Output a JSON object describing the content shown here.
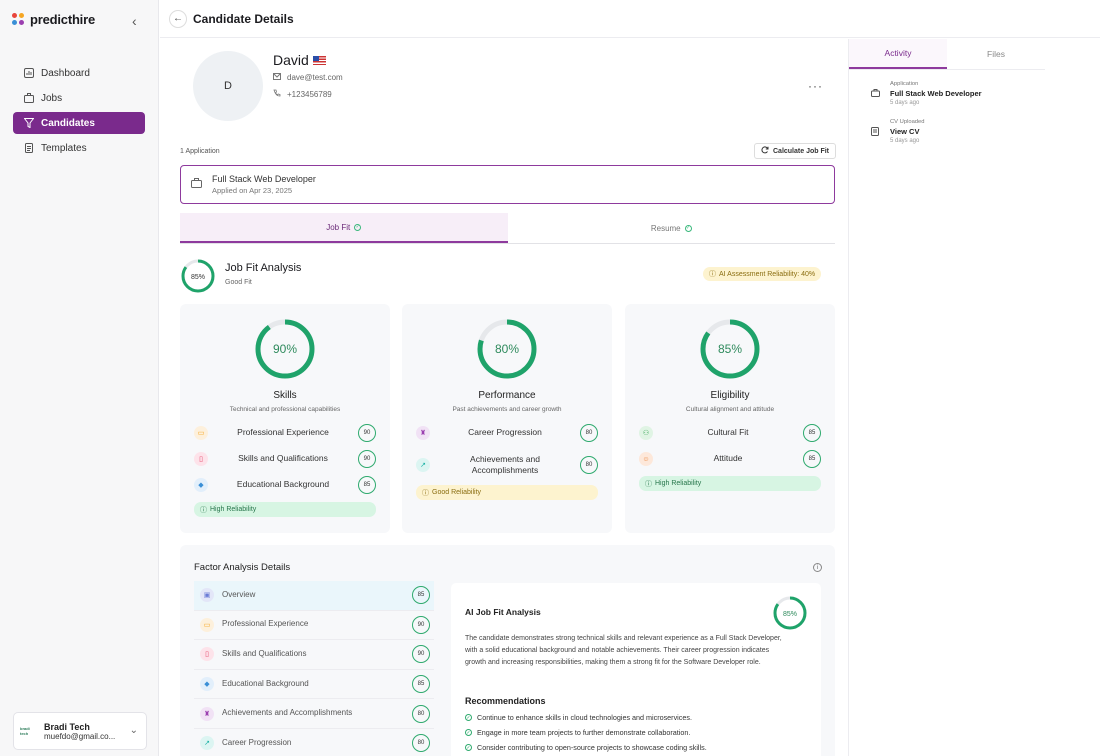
{
  "brand": {
    "name": "predicthire"
  },
  "sidebar": {
    "items": [
      {
        "label": "Dashboard",
        "icon": "dashboard-icon",
        "active": false
      },
      {
        "label": "Jobs",
        "icon": "briefcase-icon",
        "active": false
      },
      {
        "label": "Candidates",
        "icon": "filter-icon",
        "active": true
      },
      {
        "label": "Templates",
        "icon": "document-icon",
        "active": false
      }
    ],
    "user": {
      "company": "Bradi Tech",
      "email": "muefdo@gmail.co...",
      "logo_text": "bradi tech"
    }
  },
  "header": {
    "title": "Candidate Details"
  },
  "candidate": {
    "initial": "D",
    "name": "David",
    "email": "dave@test.com",
    "phone": "+123456789"
  },
  "applications": {
    "count_label": "1 Application",
    "calc_button": "Calculate Job Fit",
    "items": [
      {
        "title": "Full Stack Web Developer",
        "date": "Applied on Apr 23, 2025"
      }
    ]
  },
  "tabs": [
    {
      "label": "Job Fit",
      "active": true
    },
    {
      "label": "Resume",
      "active": false
    }
  ],
  "analysis": {
    "overall": 0.85,
    "overall_label": "85%",
    "title": "Job Fit Analysis",
    "subtitle": "Good Fit",
    "reliability": "AI Assessment Reliability: 40%"
  },
  "cards": [
    {
      "title": "Skills",
      "subtitle": "Technical and professional capabilities",
      "score": 0.9,
      "score_label": "90%",
      "factors": [
        {
          "label": "Professional Experience",
          "score": "90",
          "icon": "briefcase-icon",
          "color": "#f5a623",
          "bg": "#fdf0dc"
        },
        {
          "label": "Skills and Qualifications",
          "score": "90",
          "icon": "book-icon",
          "color": "#e5476a",
          "bg": "#fde3ea"
        },
        {
          "label": "Educational Background",
          "score": "85",
          "icon": "graduation-cap-icon",
          "color": "#3a8fd6",
          "bg": "#e2effb"
        }
      ],
      "badge": "High Reliability",
      "badge_type": "green"
    },
    {
      "title": "Performance",
      "subtitle": "Past achievements and career growth",
      "score": 0.8,
      "score_label": "80%",
      "factors": [
        {
          "label": "Career Progression",
          "score": "80",
          "icon": "trophy-icon",
          "color": "#9b3fb0",
          "bg": "#f1e2f5"
        },
        {
          "label": "Achievements and Accomplishments",
          "score": "80",
          "icon": "trend-up-icon",
          "color": "#1bb1a5",
          "bg": "#dcf5f2"
        }
      ],
      "badge": "Good Reliability",
      "badge_type": "yellow"
    },
    {
      "title": "Eligibility",
      "subtitle": "Cultural alignment and attitude",
      "score": 0.85,
      "score_label": "85%",
      "factors": [
        {
          "label": "Cultural Fit",
          "score": "85",
          "icon": "users-icon",
          "color": "#3ea85a",
          "bg": "#e0f4e4"
        },
        {
          "label": "Attitude",
          "score": "85",
          "icon": "smile-icon",
          "color": "#e8823a",
          "bg": "#fde8da"
        }
      ],
      "badge": "High Reliability",
      "badge_type": "green"
    }
  ],
  "factor_details": {
    "title": "Factor Analysis Details",
    "items": [
      {
        "label": "Overview",
        "score": "85",
        "icon": "overview-icon",
        "color": "#6b7bd6",
        "bg": "#e3e6f8",
        "active": true
      },
      {
        "label": "Professional Experience",
        "score": "90",
        "icon": "briefcase-icon",
        "color": "#f5a623",
        "bg": "#fdf0dc"
      },
      {
        "label": "Skills and Qualifications",
        "score": "90",
        "icon": "book-icon",
        "color": "#e5476a",
        "bg": "#fde3ea"
      },
      {
        "label": "Educational Background",
        "score": "85",
        "icon": "graduation-cap-icon",
        "color": "#3a8fd6",
        "bg": "#e2effb"
      },
      {
        "label": "Achievements and Accomplishments",
        "score": "80",
        "icon": "trophy-icon",
        "color": "#9b3fb0",
        "bg": "#f1e2f5"
      },
      {
        "label": "Career Progression",
        "score": "80",
        "icon": "trend-up-icon",
        "color": "#1bb1a5",
        "bg": "#dcf5f2"
      }
    ],
    "ai": {
      "title": "AI Job Fit Analysis",
      "score": 0.85,
      "score_label": "85%",
      "summary": "The candidate demonstrates strong technical skills and relevant experience as a Full Stack Developer, with a solid educational background and notable achievements. Their career progression indicates growth and increasing responsibilities, making them a strong fit for the Software Developer role.",
      "rec_title": "Recommendations",
      "recommendations": [
        "Continue to enhance skills in cloud technologies and microservices.",
        "Engage in more team projects to further demonstrate collaboration.",
        "Consider contributing to open-source projects to showcase coding skills."
      ]
    }
  },
  "right_panel": {
    "tabs": [
      {
        "label": "Activity",
        "active": true
      },
      {
        "label": "Files",
        "active": false
      }
    ],
    "activity": [
      {
        "type": "Application",
        "title": "Full Stack Web Developer",
        "time": "5 days ago",
        "icon": "briefcase-icon"
      },
      {
        "type": "CV Uploaded",
        "title": "View CV",
        "time": "5 days ago",
        "icon": "document-icon"
      }
    ]
  },
  "colors": {
    "accent": "#7a2a8c",
    "ring": "#1fa36a",
    "ring_track": "#e6e8eb"
  }
}
